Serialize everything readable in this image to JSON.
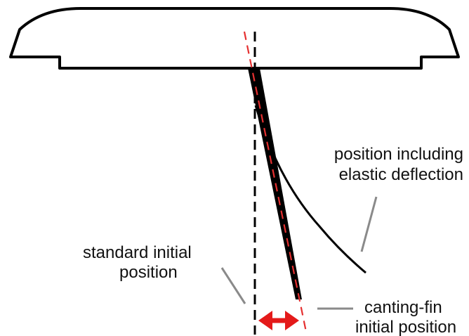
{
  "labels": {
    "elastic_line1": "position including",
    "elastic_line2": "elastic deflection",
    "standard_line1": "standard initial",
    "standard_line2": "position",
    "canting_line1": "canting-fin",
    "canting_line2": "initial position"
  },
  "colors": {
    "outline": "#000000",
    "red_dashed": "#e53030",
    "arrow": "#e41a1a",
    "leader": "#8a8a8a"
  }
}
